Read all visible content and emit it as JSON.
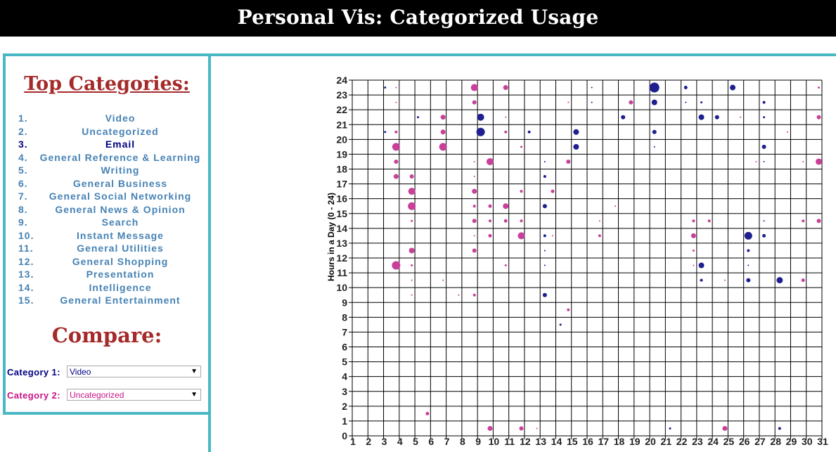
{
  "page_title": "Personal Vis: Categorized Usage",
  "sidebar": {
    "top_heading": "Top Categories:",
    "categories": [
      {
        "num": "1.",
        "name": "Video"
      },
      {
        "num": "2.",
        "name": "Uncategorized"
      },
      {
        "num": "3.",
        "name": "Email"
      },
      {
        "num": "4.",
        "name": "General Reference & Learning"
      },
      {
        "num": "5.",
        "name": "Writing"
      },
      {
        "num": "6.",
        "name": "General Business"
      },
      {
        "num": "7.",
        "name": "General Social Networking"
      },
      {
        "num": "8.",
        "name": "General News & Opinion"
      },
      {
        "num": "9.",
        "name": "Search"
      },
      {
        "num": "10.",
        "name": "Instant Message"
      },
      {
        "num": "11.",
        "name": "General Utilities"
      },
      {
        "num": "12.",
        "name": "General Shopping"
      },
      {
        "num": "13.",
        "name": "Presentation"
      },
      {
        "num": "14.",
        "name": "Intelligence"
      },
      {
        "num": "15.",
        "name": "General Entertainment"
      }
    ],
    "compare_heading": "Compare:",
    "category1_label": "Category 1:",
    "category1_value": "Video",
    "category2_label": "Category 2:",
    "category2_value": "Uncategorized",
    "arrow_glyph": "▼"
  },
  "colors": {
    "accent_border": "#4ab8c4",
    "heading": "#a52a2a",
    "category_link": "#4682b4",
    "category1": "#000080",
    "category2": "#c71585"
  },
  "chart_data": {
    "type": "scatter",
    "title": "",
    "xlabel": "",
    "ylabel": "Hours in a Day (0 - 24)",
    "xlim": [
      1,
      31
    ],
    "ylim": [
      0,
      24
    ],
    "x_ticks": [
      1,
      2,
      3,
      4,
      5,
      6,
      7,
      8,
      9,
      10,
      11,
      12,
      13,
      14,
      15,
      16,
      17,
      18,
      19,
      20,
      21,
      22,
      23,
      24,
      25,
      26,
      27,
      28,
      29,
      30,
      31
    ],
    "y_ticks": [
      0,
      1,
      2,
      3,
      4,
      5,
      6,
      7,
      8,
      9,
      10,
      11,
      12,
      13,
      14,
      15,
      16,
      17,
      18,
      19,
      20,
      21,
      22,
      23,
      24
    ],
    "grid": true,
    "series": [
      {
        "color": "#1f1f8f",
        "points": [
          [
            3.1,
            23.5,
            1.5
          ],
          [
            3.1,
            20.5,
            1.5
          ],
          [
            5.2,
            21.5,
            1.5
          ],
          [
            9.2,
            21.5,
            5
          ],
          [
            9.2,
            20.5,
            6
          ],
          [
            12.3,
            20.5,
            2
          ],
          [
            13.3,
            18.5,
            1
          ],
          [
            13.3,
            17.5,
            2
          ],
          [
            13.3,
            15.5,
            3
          ],
          [
            13.3,
            13.5,
            2
          ],
          [
            13.3,
            12.5,
            1
          ],
          [
            13.3,
            11.5,
            1
          ],
          [
            13.3,
            9.5,
            3
          ],
          [
            14.3,
            7.5,
            1.5
          ],
          [
            15.3,
            20.5,
            4
          ],
          [
            15.3,
            19.5,
            4
          ],
          [
            16.3,
            23.5,
            1
          ],
          [
            16.3,
            22.5,
            1
          ],
          [
            18.3,
            21.5,
            3
          ],
          [
            20.3,
            23.5,
            7
          ],
          [
            20.3,
            22.5,
            4
          ],
          [
            20.3,
            20.5,
            3
          ],
          [
            20.3,
            19.5,
            1
          ],
          [
            21.3,
            0.5,
            1.5
          ],
          [
            22.3,
            23.5,
            2.5
          ],
          [
            22.3,
            22.5,
            1
          ],
          [
            23.3,
            22.5,
            1.5
          ],
          [
            23.3,
            21.5,
            4
          ],
          [
            23.3,
            11.5,
            4
          ],
          [
            23.3,
            10.5,
            2
          ],
          [
            24.3,
            21.5,
            3
          ],
          [
            25.3,
            23.5,
            4
          ],
          [
            26.3,
            13.5,
            5.5
          ],
          [
            26.3,
            12.5,
            2
          ],
          [
            26.3,
            11.5,
            1
          ],
          [
            26.3,
            10.5,
            3
          ],
          [
            27.3,
            22.5,
            2
          ],
          [
            27.3,
            21.5,
            1.5
          ],
          [
            27.3,
            19.5,
            3
          ],
          [
            27.3,
            18.5,
            1
          ],
          [
            27.3,
            14.5,
            1
          ],
          [
            27.3,
            13.5,
            2.5
          ],
          [
            28.3,
            10.5,
            4.5
          ],
          [
            28.3,
            0.5,
            2
          ]
        ]
      },
      {
        "color": "#c8409a",
        "points": [
          [
            3.8,
            23.5,
            1
          ],
          [
            3.8,
            22.5,
            1
          ],
          [
            3.8,
            20.5,
            2
          ],
          [
            3.8,
            19.5,
            5.5
          ],
          [
            3.8,
            18.5,
            3
          ],
          [
            3.8,
            17.5,
            3.5
          ],
          [
            3.8,
            11.5,
            6
          ],
          [
            4.8,
            17.5,
            3
          ],
          [
            4.8,
            16.5,
            5
          ],
          [
            4.8,
            15.5,
            5.5
          ],
          [
            4.8,
            14.5,
            1.5
          ],
          [
            4.8,
            12.5,
            4
          ],
          [
            4.8,
            11.5,
            1.5
          ],
          [
            4.8,
            10.5,
            1
          ],
          [
            4.8,
            9.5,
            1
          ],
          [
            5.8,
            1.5,
            2.5
          ],
          [
            6.8,
            21.5,
            3.5
          ],
          [
            6.8,
            20.5,
            3.5
          ],
          [
            6.8,
            19.5,
            5.5
          ],
          [
            6.8,
            10.5,
            1
          ],
          [
            7.8,
            9.5,
            1
          ],
          [
            8.8,
            23.5,
            5
          ],
          [
            8.8,
            22.5,
            3
          ],
          [
            8.8,
            18.5,
            1
          ],
          [
            8.8,
            17.5,
            1
          ],
          [
            8.8,
            16.5,
            3.5
          ],
          [
            8.8,
            15.5,
            2
          ],
          [
            8.8,
            14.5,
            3
          ],
          [
            8.8,
            13.5,
            1
          ],
          [
            8.8,
            12.5,
            3
          ],
          [
            8.8,
            9.5,
            2
          ],
          [
            9.8,
            18.5,
            5
          ],
          [
            9.8,
            15.5,
            2.5
          ],
          [
            9.8,
            14.5,
            2
          ],
          [
            9.8,
            13.5,
            2.5
          ],
          [
            9.8,
            0.5,
            3.5
          ],
          [
            10.8,
            23.5,
            3.5
          ],
          [
            10.8,
            21.5,
            1
          ],
          [
            10.8,
            20.5,
            2
          ],
          [
            10.8,
            15.5,
            4
          ],
          [
            10.8,
            14.5,
            2.5
          ],
          [
            10.8,
            11.5,
            1.5
          ],
          [
            11.8,
            19.5,
            1.5
          ],
          [
            11.8,
            16.5,
            2
          ],
          [
            11.8,
            14.5,
            2
          ],
          [
            11.8,
            13.5,
            5
          ],
          [
            11.8,
            0.5,
            3
          ],
          [
            12.8,
            0.5,
            1
          ],
          [
            13.8,
            16.5,
            2.5
          ],
          [
            13.8,
            13.5,
            1
          ],
          [
            14.8,
            22.5,
            1
          ],
          [
            14.8,
            18.5,
            3
          ],
          [
            14.8,
            8.5,
            2
          ],
          [
            16.8,
            14.5,
            1
          ],
          [
            16.8,
            13.5,
            2
          ],
          [
            17.8,
            15.5,
            1
          ],
          [
            18.8,
            22.5,
            3
          ],
          [
            22.8,
            14.5,
            2
          ],
          [
            22.8,
            13.5,
            3.5
          ],
          [
            22.8,
            12.5,
            1.5
          ],
          [
            22.8,
            11.5,
            1
          ],
          [
            23.8,
            14.5,
            2
          ],
          [
            24.8,
            10.5,
            1
          ],
          [
            24.8,
            0.5,
            3.5
          ],
          [
            25.8,
            21.5,
            1
          ],
          [
            26.8,
            18.5,
            1
          ],
          [
            28.8,
            20.5,
            1
          ],
          [
            29.8,
            18.5,
            1
          ],
          [
            29.8,
            14.5,
            2
          ],
          [
            29.8,
            10.5,
            2.5
          ],
          [
            30.8,
            23.5,
            1.5
          ],
          [
            30.8,
            21.5,
            3
          ],
          [
            30.8,
            18.5,
            4.5
          ],
          [
            30.8,
            14.5,
            3
          ]
        ]
      }
    ]
  }
}
